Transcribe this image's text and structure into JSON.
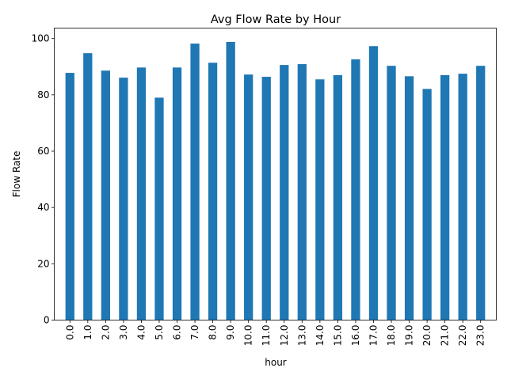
{
  "chart_data": {
    "type": "bar",
    "title": "Avg Flow Rate by Hour",
    "xlabel": "hour",
    "ylabel": "Flow Rate",
    "categories": [
      "0.0",
      "1.0",
      "2.0",
      "3.0",
      "4.0",
      "5.0",
      "6.0",
      "7.0",
      "8.0",
      "9.0",
      "10.0",
      "11.0",
      "12.0",
      "13.0",
      "14.0",
      "15.0",
      "16.0",
      "17.0",
      "18.0",
      "19.0",
      "20.0",
      "21.0",
      "22.0",
      "23.0"
    ],
    "values": [
      87.8,
      94.8,
      88.6,
      86.1,
      89.7,
      79.0,
      89.7,
      98.2,
      91.4,
      98.8,
      87.2,
      86.4,
      90.6,
      90.9,
      85.5,
      87.0,
      92.6,
      97.3,
      90.3,
      86.6,
      82.1,
      87.0,
      87.5,
      90.3
    ],
    "yticks": [
      0,
      20,
      40,
      60,
      80,
      100
    ],
    "ylim": [
      0,
      103.7
    ],
    "grid": false,
    "legend": false,
    "bar_color": "#1f77b4"
  }
}
